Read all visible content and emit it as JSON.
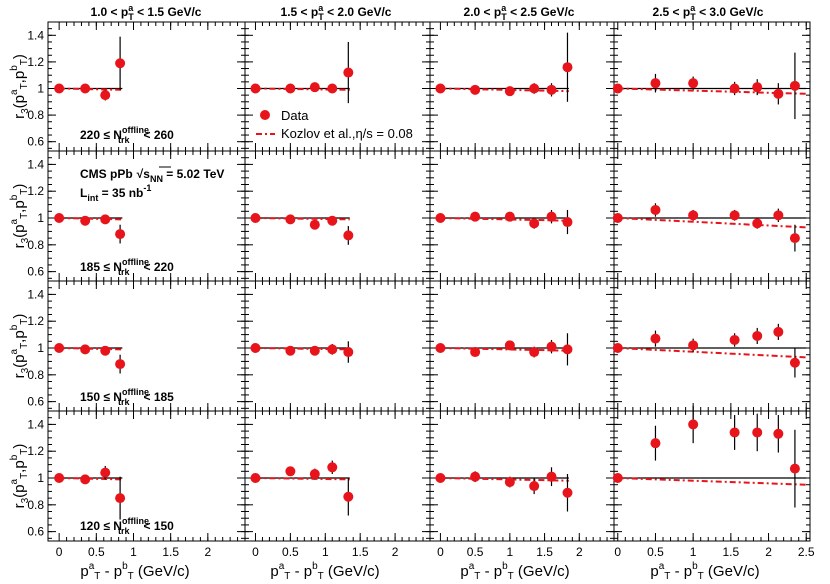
{
  "figure": {
    "ytitle": {
      "main": "r",
      "sub": "3",
      "args": "(p",
      "a": "a",
      "T": "T",
      "comma": ",p",
      "b": "b",
      "close": ")"
    },
    "xtitle": {
      "pa": "p",
      "a": "a",
      "T": "T",
      "minus": " - p",
      "b": "b",
      "unit": " (GeV/c)"
    },
    "column_titles": [
      {
        "lo": "1.0",
        "hi": "1.5 GeV/c"
      },
      {
        "lo": "1.5",
        "hi": "2.0 GeV/c"
      },
      {
        "lo": "2.0",
        "hi": "2.5 GeV/c"
      },
      {
        "lo": "2.5",
        "hi": "3.0 GeV/c"
      }
    ],
    "row_labels": [
      {
        "lo": "220",
        "hi": "260"
      },
      {
        "lo": "185",
        "hi": "220"
      },
      {
        "lo": "150",
        "hi": "185"
      },
      {
        "lo": "120",
        "hi": "150"
      }
    ],
    "legend": {
      "data": "Data",
      "model": "Kozlov et al.,",
      "model_eta": "η/s = 0.08"
    },
    "cms": {
      "line1": "CMS pPb",
      "sqrt": "s",
      "nn": "NN",
      "energy": " = 5.02 TeV",
      "lumi": "L",
      "lumi_sub": "int",
      "lumi_val": " = 35 nb",
      "lumi_exp": "-1"
    }
  },
  "chart_data": {
    "type": "scatter",
    "ylim": [
      0.53,
      1.5
    ],
    "xlim": [
      -0.15,
      2.5
    ],
    "xlim_last_col": [
      -0.05,
      2.55
    ],
    "y_ticks": [
      0.6,
      0.8,
      1,
      1.2,
      1.4
    ],
    "x_ticks": [
      0,
      0.5,
      1,
      1.5,
      2
    ],
    "x_ticks_last_col": [
      0,
      0.5,
      1,
      1.5,
      2,
      2.5
    ],
    "grid": false,
    "colors": {
      "data": "#e8141b",
      "model": "#e8141b",
      "reference": "#000000"
    },
    "panels": [
      [
        {
          "x": [
            0,
            0.35,
            0.62,
            0.82
          ],
          "y": [
            1.0,
            1.0,
            0.95,
            1.19
          ],
          "err": [
            0.02,
            0.02,
            0.04,
            0.2
          ],
          "ref_end": 0.85,
          "model_end": 0.85,
          "model_y_end": 0.99
        },
        {
          "x": [
            0,
            0.5,
            0.85,
            1.1,
            1.33
          ],
          "y": [
            1.0,
            1.0,
            1.01,
            1.0,
            1.12
          ],
          "err": [
            0.02,
            0.02,
            0.03,
            0.03,
            0.23
          ],
          "ref_end": 1.35,
          "model_end": 1.35,
          "model_y_end": 0.99
        },
        {
          "x": [
            0,
            0.5,
            1.0,
            1.35,
            1.6,
            1.83
          ],
          "y": [
            1.0,
            0.99,
            0.98,
            1.0,
            0.99,
            1.16
          ],
          "err": [
            0.02,
            0.02,
            0.03,
            0.04,
            0.05,
            0.26
          ],
          "ref_end": 1.85,
          "model_end": 1.85,
          "model_y_end": 0.98
        },
        {
          "x": [
            0,
            0.5,
            1.0,
            1.55,
            1.85,
            2.13,
            2.35
          ],
          "y": [
            1.0,
            1.04,
            1.04,
            1.0,
            1.01,
            0.96,
            1.02
          ],
          "err": [
            0.02,
            0.07,
            0.05,
            0.05,
            0.06,
            0.08,
            0.25
          ],
          "ref_end": 2.5,
          "model_end": 2.5,
          "model_y_end": 0.96
        }
      ],
      [
        {
          "x": [
            0,
            0.35,
            0.62,
            0.82
          ],
          "y": [
            1.0,
            0.98,
            0.99,
            0.88
          ],
          "err": [
            0.02,
            0.02,
            0.03,
            0.07
          ],
          "ref_end": 0.85,
          "model_end": 0.85,
          "model_y_end": 0.99
        },
        {
          "x": [
            0,
            0.5,
            0.85,
            1.1,
            1.33
          ],
          "y": [
            1.0,
            0.99,
            0.95,
            0.98,
            0.87
          ],
          "err": [
            0.02,
            0.02,
            0.03,
            0.03,
            0.07
          ],
          "ref_end": 1.35,
          "model_end": 1.35,
          "model_y_end": 0.99
        },
        {
          "x": [
            0,
            0.5,
            1.0,
            1.35,
            1.6,
            1.83
          ],
          "y": [
            1.0,
            1.01,
            1.01,
            0.96,
            1.01,
            0.97
          ],
          "err": [
            0.02,
            0.02,
            0.03,
            0.04,
            0.05,
            0.09
          ],
          "ref_end": 1.85,
          "model_end": 1.85,
          "model_y_end": 0.98
        },
        {
          "x": [
            0,
            0.5,
            1.0,
            1.55,
            1.85,
            2.13,
            2.35
          ],
          "y": [
            1.0,
            1.06,
            1.02,
            1.02,
            0.96,
            1.02,
            0.85
          ],
          "err": [
            0.02,
            0.05,
            0.04,
            0.04,
            0.04,
            0.05,
            0.1
          ],
          "ref_end": 2.5,
          "model_end": 2.5,
          "model_y_end": 0.93
        }
      ],
      [
        {
          "x": [
            0,
            0.35,
            0.62,
            0.82
          ],
          "y": [
            1.0,
            0.99,
            0.98,
            0.88
          ],
          "err": [
            0.02,
            0.02,
            0.03,
            0.07
          ],
          "ref_end": 0.85,
          "model_end": 0.85,
          "model_y_end": 0.99
        },
        {
          "x": [
            0,
            0.5,
            0.85,
            1.1,
            1.33
          ],
          "y": [
            1.0,
            0.98,
            0.98,
            0.99,
            0.97
          ],
          "err": [
            0.02,
            0.02,
            0.03,
            0.04,
            0.08
          ],
          "ref_end": 1.35,
          "model_end": 1.35,
          "model_y_end": 0.99
        },
        {
          "x": [
            0,
            0.5,
            1.0,
            1.35,
            1.6,
            1.83
          ],
          "y": [
            1.0,
            0.97,
            1.02,
            0.97,
            1.01,
            0.99
          ],
          "err": [
            0.02,
            0.02,
            0.03,
            0.04,
            0.05,
            0.12
          ],
          "ref_end": 1.85,
          "model_end": 1.85,
          "model_y_end": 0.98
        },
        {
          "x": [
            0,
            0.5,
            1.0,
            1.55,
            1.85,
            2.13,
            2.35
          ],
          "y": [
            1.0,
            1.07,
            1.02,
            1.06,
            1.09,
            1.12,
            0.89
          ],
          "err": [
            0.02,
            0.06,
            0.05,
            0.05,
            0.06,
            0.06,
            0.11
          ],
          "ref_end": 2.5,
          "model_end": 2.5,
          "model_y_end": 0.93
        }
      ],
      [
        {
          "x": [
            0,
            0.35,
            0.62,
            0.82
          ],
          "y": [
            1.0,
            0.99,
            1.04,
            0.85
          ],
          "err": [
            0.02,
            0.03,
            0.05,
            0.16
          ],
          "ref_end": 0.85,
          "model_end": 0.85,
          "model_y_end": 0.99
        },
        {
          "x": [
            0,
            0.5,
            0.85,
            1.1,
            1.33
          ],
          "y": [
            1.0,
            1.05,
            1.03,
            1.08,
            0.86
          ],
          "err": [
            0.02,
            0.03,
            0.04,
            0.05,
            0.14
          ],
          "ref_end": 1.35,
          "model_end": 1.35,
          "model_y_end": 0.99
        },
        {
          "x": [
            0,
            0.5,
            1.0,
            1.35,
            1.6,
            1.83
          ],
          "y": [
            1.0,
            1.01,
            0.97,
            0.94,
            1.01,
            0.89
          ],
          "err": [
            0.02,
            0.04,
            0.04,
            0.06,
            0.07,
            0.14
          ],
          "ref_end": 1.85,
          "model_end": 1.85,
          "model_y_end": 0.98
        },
        {
          "x": [
            0,
            0.5,
            1.0,
            1.55,
            1.85,
            2.13,
            2.35
          ],
          "y": [
            1.0,
            1.26,
            1.4,
            1.34,
            1.34,
            1.33,
            1.07
          ],
          "err": [
            0.02,
            0.13,
            0.14,
            0.13,
            0.14,
            0.14,
            0.29
          ],
          "ref_end": 2.5,
          "model_end": 2.5,
          "model_y_end": 0.95
        }
      ]
    ]
  }
}
